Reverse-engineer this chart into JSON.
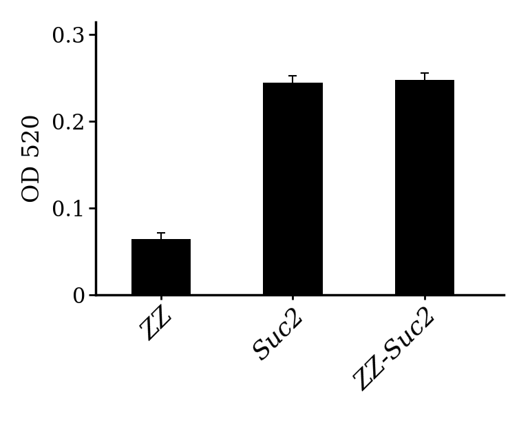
{
  "categories": [
    "ZZ",
    "Suc2",
    "ZZ-Suc2"
  ],
  "values": [
    0.065,
    0.245,
    0.248
  ],
  "errors": [
    0.007,
    0.008,
    0.008
  ],
  "bar_color": "#000000",
  "bar_width": 0.45,
  "ylabel": "OD 520",
  "ylim": [
    0,
    0.315
  ],
  "yticks": [
    0,
    0.1,
    0.2,
    0.3
  ],
  "ytick_labels": [
    "0",
    "0.1",
    "0.2",
    "0.3"
  ],
  "background_color": "#ffffff",
  "ylabel_fontsize": 24,
  "tick_fontsize": 22,
  "xtick_fontsize": 26,
  "spine_color": "#000000",
  "error_cap_size": 4,
  "error_line_width": 1.5,
  "error_color": "#000000",
  "bar_positions": [
    1,
    2,
    3
  ]
}
